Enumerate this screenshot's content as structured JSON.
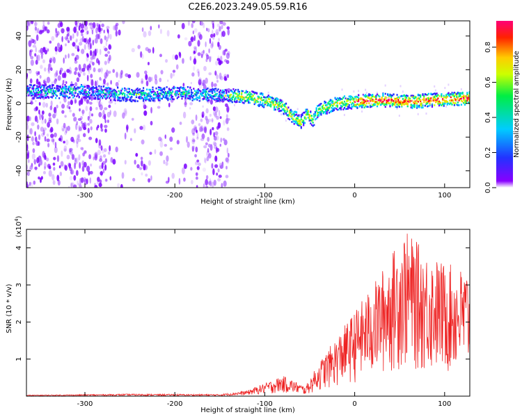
{
  "title": "C2E6.2023.249.05.59.R16",
  "chart_data": [
    {
      "type": "heatmap",
      "title": "C2E6.2023.249.05.59.R16",
      "xlabel": "Height of straight line (km)",
      "ylabel": "Frequency (Hz)",
      "xlim": [
        -365,
        128
      ],
      "ylim": [
        -50,
        49
      ],
      "xticks": [
        -300,
        -200,
        -100,
        0,
        100
      ],
      "yticks": [
        -40,
        -20,
        0,
        20,
        40
      ],
      "colorbar": {
        "label": "Normalized spectral amplitude",
        "range": [
          0.0,
          0.95
        ],
        "ticks": [
          0.0,
          0.2,
          0.4,
          0.6,
          0.8
        ]
      },
      "ridge_frequency_hz": [
        {
          "x": -300,
          "y": 7
        },
        {
          "x": -250,
          "y": 5
        },
        {
          "x": -200,
          "y": 6
        },
        {
          "x": -150,
          "y": 5
        },
        {
          "x": -120,
          "y": 4
        },
        {
          "x": -95,
          "y": 1
        },
        {
          "x": -80,
          "y": -2
        },
        {
          "x": -68,
          "y": -8
        },
        {
          "x": -60,
          "y": -11
        },
        {
          "x": -52,
          "y": -6
        },
        {
          "x": -46,
          "y": -10
        },
        {
          "x": -40,
          "y": -4
        },
        {
          "x": -20,
          "y": 0
        },
        {
          "x": 0,
          "y": 1
        },
        {
          "x": 30,
          "y": 2
        },
        {
          "x": 60,
          "y": 1
        },
        {
          "x": 90,
          "y": 2
        },
        {
          "x": 125,
          "y": 3
        }
      ]
    },
    {
      "type": "line",
      "xlabel": "Height of straight line (km)",
      "ylabel": "SNR (10 * v/v)",
      "y_scale_label": "(x10",
      "y_scale_exp": "4",
      "y_scale_close": ")",
      "xlim": [
        -365,
        128
      ],
      "ylim": [
        0,
        4.5
      ],
      "xticks": [
        -300,
        -200,
        -100,
        0,
        100
      ],
      "yticks": [
        1,
        2,
        3,
        4
      ],
      "series": [
        {
          "name": "SNR",
          "color": "#ee2222",
          "envelope": [
            {
              "x": -365,
              "y": 0.03
            },
            {
              "x": -250,
              "y": 0.06
            },
            {
              "x": -150,
              "y": 0.05
            },
            {
              "x": -120,
              "y": 0.15
            },
            {
              "x": -100,
              "y": 0.35
            },
            {
              "x": -80,
              "y": 0.55
            },
            {
              "x": -70,
              "y": 0.45
            },
            {
              "x": -55,
              "y": 0.25
            },
            {
              "x": -40,
              "y": 0.9
            },
            {
              "x": -20,
              "y": 1.6
            },
            {
              "x": 0,
              "y": 2.3
            },
            {
              "x": 20,
              "y": 3.0
            },
            {
              "x": 40,
              "y": 3.8
            },
            {
              "x": 55,
              "y": 4.5
            },
            {
              "x": 80,
              "y": 3.9
            },
            {
              "x": 100,
              "y": 3.6
            },
            {
              "x": 128,
              "y": 3.4
            }
          ]
        }
      ]
    }
  ],
  "colors": {
    "colormap": [
      "#6a00ff",
      "#2233ff",
      "#00ccff",
      "#00ee77",
      "#ccff00",
      "#ffcc00",
      "#ff2200",
      "#ff0077"
    ],
    "snr_line": "#ee2222"
  }
}
